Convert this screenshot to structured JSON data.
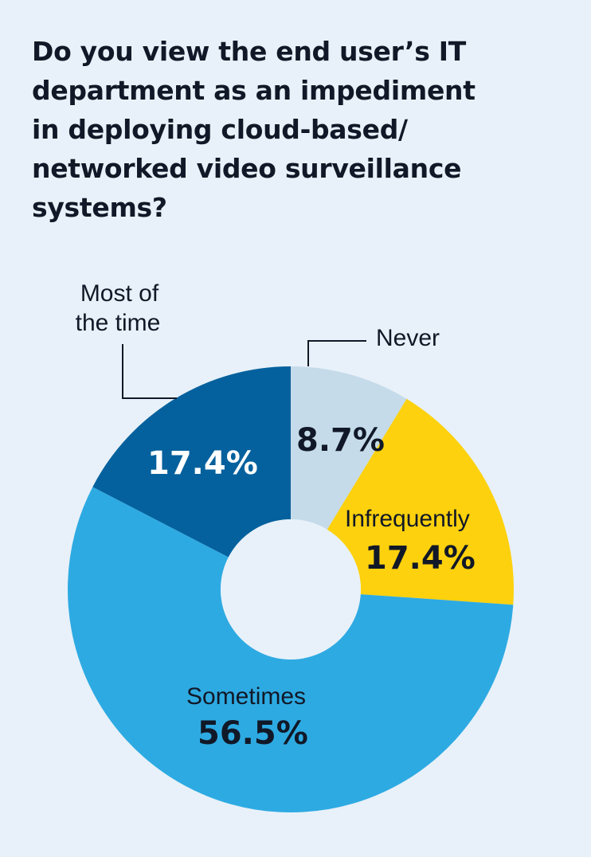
{
  "title": "Do you view the end user’s IT department as an impediment in deploying cloud-based/ networked video surveillance systems?",
  "chart_data": {
    "type": "pie",
    "donut": true,
    "title": "Do you view the end user’s IT department as an impediment in deploying cloud-based/ networked video surveillance systems?",
    "categories": [
      "Never",
      "Infrequently",
      "Sometimes",
      "Most of the time"
    ],
    "values": [
      8.7,
      17.4,
      56.5,
      17.4
    ],
    "value_labels": [
      "8.7%",
      "17.4%",
      "56.5%",
      "17.4%"
    ],
    "colors": [
      "#c5dbea",
      "#fdd10d",
      "#2eaae2",
      "#04619d"
    ],
    "label_colors": [
      "#111827",
      "#111827",
      "#111827",
      "#ffffff"
    ],
    "start": "12 o'clock",
    "direction": "clockwise"
  },
  "labels": {
    "never": "Never",
    "infrequently": "Infrequently",
    "sometimes": "Sometimes",
    "most_line1": "Most of",
    "most_line2": "the time"
  }
}
